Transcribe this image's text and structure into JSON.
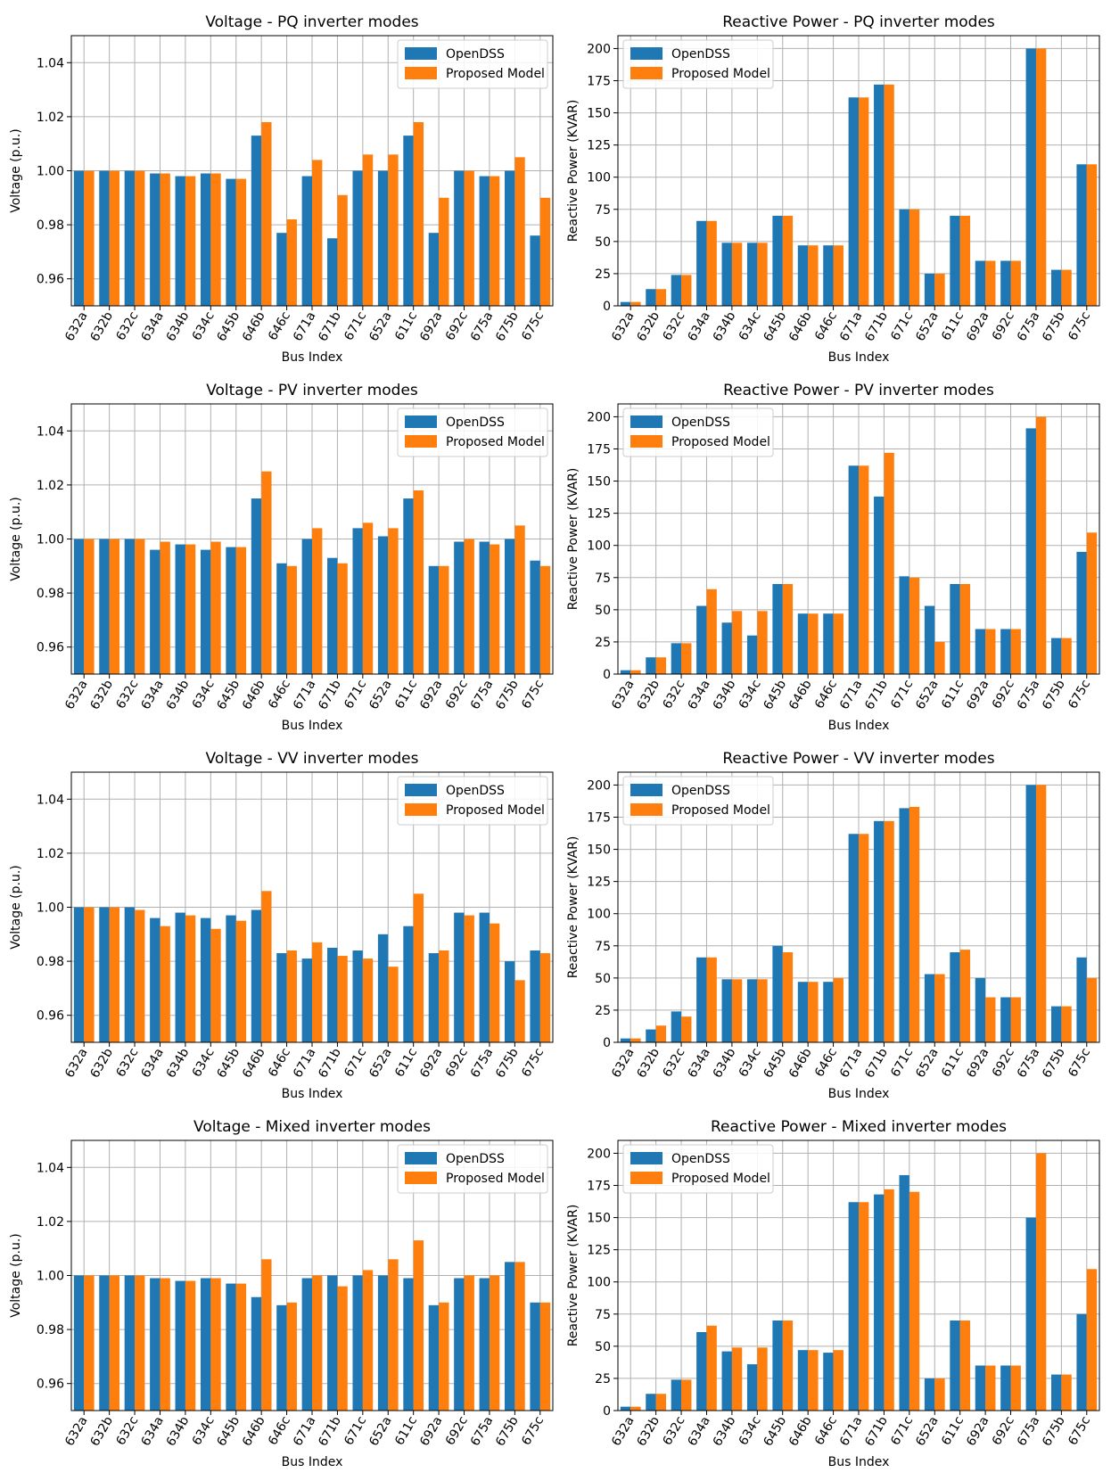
{
  "colors": {
    "opendss": "#1f77b4",
    "proposed": "#ff7f0e",
    "grid": "#b0b0b0"
  },
  "legend": {
    "opendss": "OpenDSS",
    "proposed": "Proposed Model"
  },
  "chart_data": [
    {
      "id": "v-pq",
      "type": "bar",
      "title": "Voltage - PQ inverter modes",
      "xlabel": "Bus Index",
      "ylabel": "Voltage (p.u.)",
      "ylim": [
        0.95,
        1.05
      ],
      "yticks": [
        0.96,
        0.98,
        1.0,
        1.02,
        1.04
      ],
      "ytick_labels": [
        "0.96",
        "0.98",
        "1.00",
        "1.02",
        "1.04"
      ],
      "legend_loc": "top-right",
      "grid": true,
      "categories": [
        "632a",
        "632b",
        "632c",
        "634a",
        "634b",
        "634c",
        "645b",
        "646b",
        "646c",
        "671a",
        "671b",
        "671c",
        "652a",
        "611c",
        "692a",
        "692c",
        "675a",
        "675b",
        "675c"
      ],
      "series": [
        {
          "name": "OpenDSS",
          "values": [
            1.0,
            1.0,
            1.0,
            0.999,
            0.998,
            0.999,
            0.997,
            1.013,
            0.977,
            0.998,
            0.975,
            1.0,
            1.0,
            1.013,
            0.977,
            1.0,
            0.998,
            1.0,
            0.976
          ]
        },
        {
          "name": "Proposed Model",
          "values": [
            1.0,
            1.0,
            1.0,
            0.999,
            0.998,
            0.999,
            0.997,
            1.018,
            0.982,
            1.004,
            0.991,
            1.006,
            1.006,
            1.018,
            0.99,
            1.0,
            0.998,
            1.005,
            0.99
          ]
        }
      ]
    },
    {
      "id": "q-pq",
      "type": "bar",
      "title": "Reactive Power - PQ inverter modes",
      "xlabel": "Bus Index",
      "ylabel": "Reactive Power (KVAR)",
      "ylim": [
        0,
        210
      ],
      "yticks": [
        0,
        25,
        50,
        75,
        100,
        125,
        150,
        175,
        200
      ],
      "ytick_labels": [
        "0",
        "25",
        "50",
        "75",
        "100",
        "125",
        "150",
        "175",
        "200"
      ],
      "legend_loc": "top-left",
      "grid": true,
      "categories": [
        "632a",
        "632b",
        "632c",
        "634a",
        "634b",
        "634c",
        "645b",
        "646b",
        "646c",
        "671a",
        "671b",
        "671c",
        "652a",
        "611c",
        "692a",
        "692c",
        "675a",
        "675b",
        "675c"
      ],
      "series": [
        {
          "name": "OpenDSS",
          "values": [
            3,
            13,
            24,
            66,
            49,
            49,
            70,
            47,
            47,
            162,
            172,
            75,
            25,
            70,
            35,
            35,
            200,
            28,
            110
          ]
        },
        {
          "name": "Proposed Model",
          "values": [
            3,
            13,
            24,
            66,
            49,
            49,
            70,
            47,
            47,
            162,
            172,
            75,
            25,
            70,
            35,
            35,
            200,
            28,
            110
          ]
        }
      ]
    },
    {
      "id": "v-pv",
      "type": "bar",
      "title": "Voltage - PV inverter modes",
      "xlabel": "Bus Index",
      "ylabel": "Voltage (p.u.)",
      "ylim": [
        0.95,
        1.05
      ],
      "yticks": [
        0.96,
        0.98,
        1.0,
        1.02,
        1.04
      ],
      "ytick_labels": [
        "0.96",
        "0.98",
        "1.00",
        "1.02",
        "1.04"
      ],
      "legend_loc": "top-right",
      "grid": true,
      "categories": [
        "632a",
        "632b",
        "632c",
        "634a",
        "634b",
        "634c",
        "645b",
        "646b",
        "646c",
        "671a",
        "671b",
        "671c",
        "652a",
        "611c",
        "692a",
        "692c",
        "675a",
        "675b",
        "675c"
      ],
      "series": [
        {
          "name": "OpenDSS",
          "values": [
            1.0,
            1.0,
            1.0,
            0.996,
            0.998,
            0.996,
            0.997,
            1.015,
            0.991,
            1.0,
            0.993,
            1.004,
            1.001,
            1.015,
            0.99,
            0.999,
            0.999,
            1.0,
            0.992
          ]
        },
        {
          "name": "Proposed Model",
          "values": [
            1.0,
            1.0,
            1.0,
            0.999,
            0.998,
            0.999,
            0.997,
            1.025,
            0.99,
            1.004,
            0.991,
            1.006,
            1.004,
            1.018,
            0.99,
            1.0,
            0.998,
            1.005,
            0.99
          ]
        }
      ]
    },
    {
      "id": "q-pv",
      "type": "bar",
      "title": "Reactive Power - PV inverter modes",
      "xlabel": "Bus Index",
      "ylabel": "Reactive Power (KVAR)",
      "ylim": [
        0,
        210
      ],
      "yticks": [
        0,
        25,
        50,
        75,
        100,
        125,
        150,
        175,
        200
      ],
      "ytick_labels": [
        "0",
        "25",
        "50",
        "75",
        "100",
        "125",
        "150",
        "175",
        "200"
      ],
      "legend_loc": "top-left",
      "grid": true,
      "categories": [
        "632a",
        "632b",
        "632c",
        "634a",
        "634b",
        "634c",
        "645b",
        "646b",
        "646c",
        "671a",
        "671b",
        "671c",
        "652a",
        "611c",
        "692a",
        "692c",
        "675a",
        "675b",
        "675c"
      ],
      "series": [
        {
          "name": "OpenDSS",
          "values": [
            3,
            13,
            24,
            53,
            40,
            30,
            70,
            47,
            47,
            162,
            138,
            76,
            53,
            70,
            35,
            35,
            191,
            28,
            95
          ]
        },
        {
          "name": "Proposed Model",
          "values": [
            3,
            13,
            24,
            66,
            49,
            49,
            70,
            47,
            47,
            162,
            172,
            75,
            25,
            70,
            35,
            35,
            200,
            28,
            110
          ]
        }
      ]
    },
    {
      "id": "v-vv",
      "type": "bar",
      "title": "Voltage - VV inverter modes",
      "xlabel": "Bus Index",
      "ylabel": "Voltage (p.u.)",
      "ylim": [
        0.95,
        1.05
      ],
      "yticks": [
        0.96,
        0.98,
        1.0,
        1.02,
        1.04
      ],
      "ytick_labels": [
        "0.96",
        "0.98",
        "1.00",
        "1.02",
        "1.04"
      ],
      "legend_loc": "top-right",
      "grid": true,
      "categories": [
        "632a",
        "632b",
        "632c",
        "634a",
        "634b",
        "634c",
        "645b",
        "646b",
        "646c",
        "671a",
        "671b",
        "671c",
        "652a",
        "611c",
        "692a",
        "692c",
        "675a",
        "675b",
        "675c"
      ],
      "series": [
        {
          "name": "OpenDSS",
          "values": [
            1.0,
            1.0,
            1.0,
            0.996,
            0.998,
            0.996,
            0.997,
            0.999,
            0.983,
            0.981,
            0.985,
            0.984,
            0.99,
            0.993,
            0.983,
            0.998,
            0.998,
            0.98,
            0.984
          ]
        },
        {
          "name": "Proposed Model",
          "values": [
            1.0,
            1.0,
            0.999,
            0.993,
            0.997,
            0.992,
            0.995,
            1.006,
            0.984,
            0.987,
            0.982,
            0.981,
            0.978,
            1.005,
            0.984,
            0.997,
            0.994,
            0.973,
            0.983
          ]
        }
      ]
    },
    {
      "id": "q-vv",
      "type": "bar",
      "title": "Reactive Power - VV inverter modes",
      "xlabel": "Bus Index",
      "ylabel": "Reactive Power (KVAR)",
      "ylim": [
        0,
        210
      ],
      "yticks": [
        0,
        25,
        50,
        75,
        100,
        125,
        150,
        175,
        200
      ],
      "ytick_labels": [
        "0",
        "25",
        "50",
        "75",
        "100",
        "125",
        "150",
        "175",
        "200"
      ],
      "legend_loc": "top-left",
      "grid": true,
      "categories": [
        "632a",
        "632b",
        "632c",
        "634a",
        "634b",
        "634c",
        "645b",
        "646b",
        "646c",
        "671a",
        "671b",
        "671c",
        "652a",
        "611c",
        "692a",
        "692c",
        "675a",
        "675b",
        "675c"
      ],
      "series": [
        {
          "name": "OpenDSS",
          "values": [
            3,
            10,
            24,
            66,
            49,
            49,
            75,
            47,
            47,
            162,
            172,
            182,
            53,
            70,
            50,
            35,
            200,
            28,
            66
          ]
        },
        {
          "name": "Proposed Model",
          "values": [
            3,
            13,
            20,
            66,
            49,
            49,
            70,
            47,
            50,
            162,
            172,
            183,
            53,
            72,
            35,
            35,
            200,
            28,
            50
          ]
        }
      ]
    },
    {
      "id": "v-mixed",
      "type": "bar",
      "title": "Voltage - Mixed inverter modes",
      "xlabel": "Bus Index",
      "ylabel": "Voltage (p.u.)",
      "ylim": [
        0.95,
        1.05
      ],
      "yticks": [
        0.96,
        0.98,
        1.0,
        1.02,
        1.04
      ],
      "ytick_labels": [
        "0.96",
        "0.98",
        "1.00",
        "1.02",
        "1.04"
      ],
      "legend_loc": "top-right",
      "grid": true,
      "categories": [
        "632a",
        "632b",
        "632c",
        "634a",
        "634b",
        "634c",
        "645b",
        "646b",
        "646c",
        "671a",
        "671b",
        "671c",
        "652a",
        "611c",
        "692a",
        "692c",
        "675a",
        "675b",
        "675c"
      ],
      "series": [
        {
          "name": "OpenDSS",
          "values": [
            1.0,
            1.0,
            1.0,
            0.999,
            0.998,
            0.999,
            0.997,
            0.992,
            0.989,
            0.999,
            1.0,
            1.0,
            1.0,
            0.999,
            0.989,
            0.999,
            0.999,
            1.005,
            0.99
          ]
        },
        {
          "name": "Proposed Model",
          "values": [
            1.0,
            1.0,
            1.0,
            0.999,
            0.998,
            0.999,
            0.997,
            1.006,
            0.99,
            1.0,
            0.996,
            1.002,
            1.006,
            1.013,
            0.99,
            1.0,
            1.0,
            1.005,
            0.99
          ]
        }
      ]
    },
    {
      "id": "q-mixed",
      "type": "bar",
      "title": "Reactive Power - Mixed inverter modes",
      "xlabel": "Bus Index",
      "ylabel": "Reactive Power (KVAR)",
      "ylim": [
        0,
        210
      ],
      "yticks": [
        0,
        25,
        50,
        75,
        100,
        125,
        150,
        175,
        200
      ],
      "ytick_labels": [
        "0",
        "25",
        "50",
        "75",
        "100",
        "125",
        "150",
        "175",
        "200"
      ],
      "legend_loc": "top-left",
      "grid": true,
      "categories": [
        "632a",
        "632b",
        "632c",
        "634a",
        "634b",
        "634c",
        "645b",
        "646b",
        "646c",
        "671a",
        "671b",
        "671c",
        "652a",
        "611c",
        "692a",
        "692c",
        "675a",
        "675b",
        "675c"
      ],
      "series": [
        {
          "name": "OpenDSS",
          "values": [
            3,
            13,
            24,
            61,
            46,
            36,
            70,
            47,
            45,
            162,
            168,
            183,
            25,
            70,
            35,
            35,
            150,
            28,
            75
          ]
        },
        {
          "name": "Proposed Model",
          "values": [
            3,
            13,
            24,
            66,
            49,
            49,
            70,
            47,
            47,
            162,
            172,
            170,
            25,
            70,
            35,
            35,
            200,
            28,
            110
          ]
        }
      ]
    }
  ]
}
